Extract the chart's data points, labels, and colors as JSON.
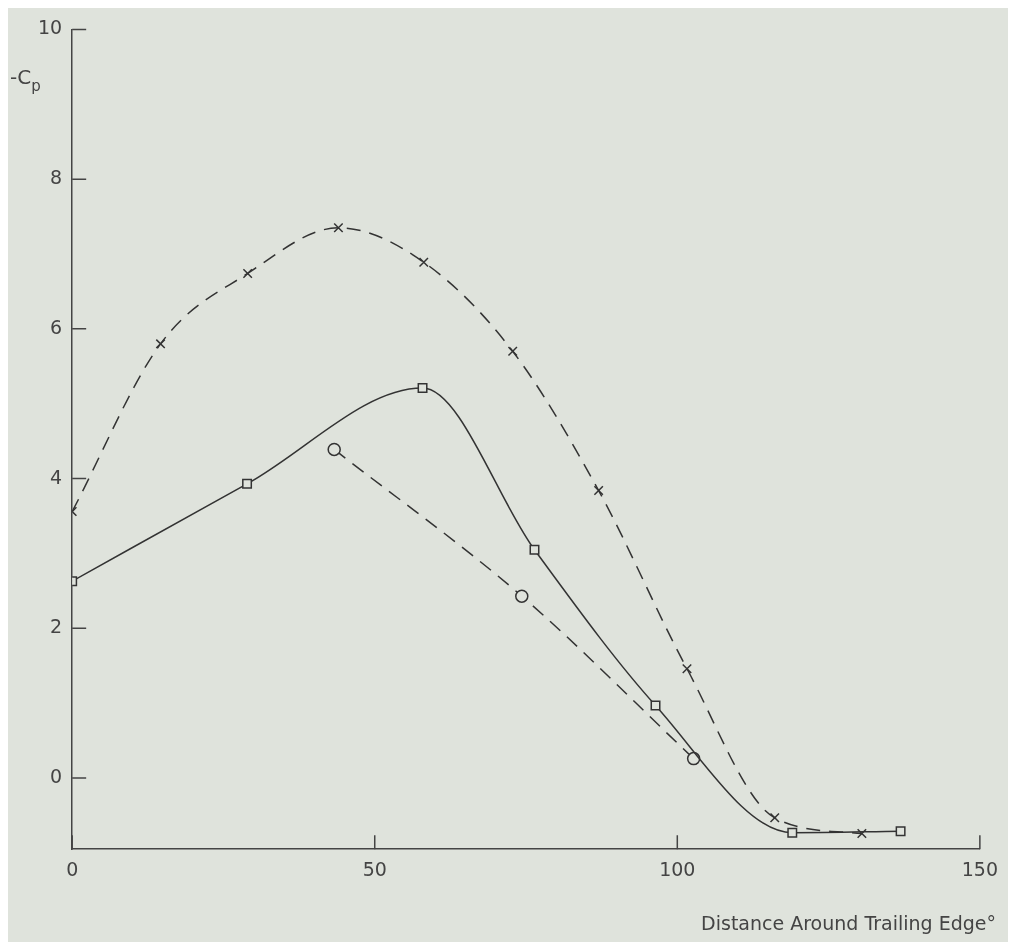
{
  "chart_data": {
    "type": "line",
    "xlabel": "Distance Around Trailing Edge°",
    "ylabel": "-C$_{p}$",
    "xlim": [
      0,
      150
    ],
    "xticks": [
      0,
      50,
      100,
      150
    ],
    "ylim": [
      -0.95,
      10
    ],
    "yticks": [
      0,
      2,
      4,
      6,
      8,
      10
    ],
    "grid": false,
    "legend": false,
    "series": [
      {
        "color": "#333333",
        "marker": "cross",
        "line_style": "dashed",
        "x": [
          0,
          14.6,
          29,
          44,
          58.1,
          72.8,
          87,
          101.6,
          116.1,
          130.5
        ],
        "values": [
          3.56,
          5.8,
          6.74,
          7.35,
          6.89,
          5.7,
          3.84,
          1.46,
          -0.53,
          -0.74
        ]
      },
      {
        "color": "#333333",
        "marker": "square",
        "line_style": "solid",
        "x": [
          0,
          28.9,
          57.9,
          76.4,
          96.4,
          119,
          136.9
        ],
        "values": [
          2.63,
          3.93,
          5.21,
          3.05,
          0.97,
          -0.73,
          -0.71
        ]
      },
      {
        "color": "#333333",
        "marker": "circle",
        "line_style": "dashed",
        "x": [
          43.3,
          74.3,
          102.7
        ],
        "values": [
          4.39,
          2.43,
          0.26
        ]
      }
    ]
  }
}
